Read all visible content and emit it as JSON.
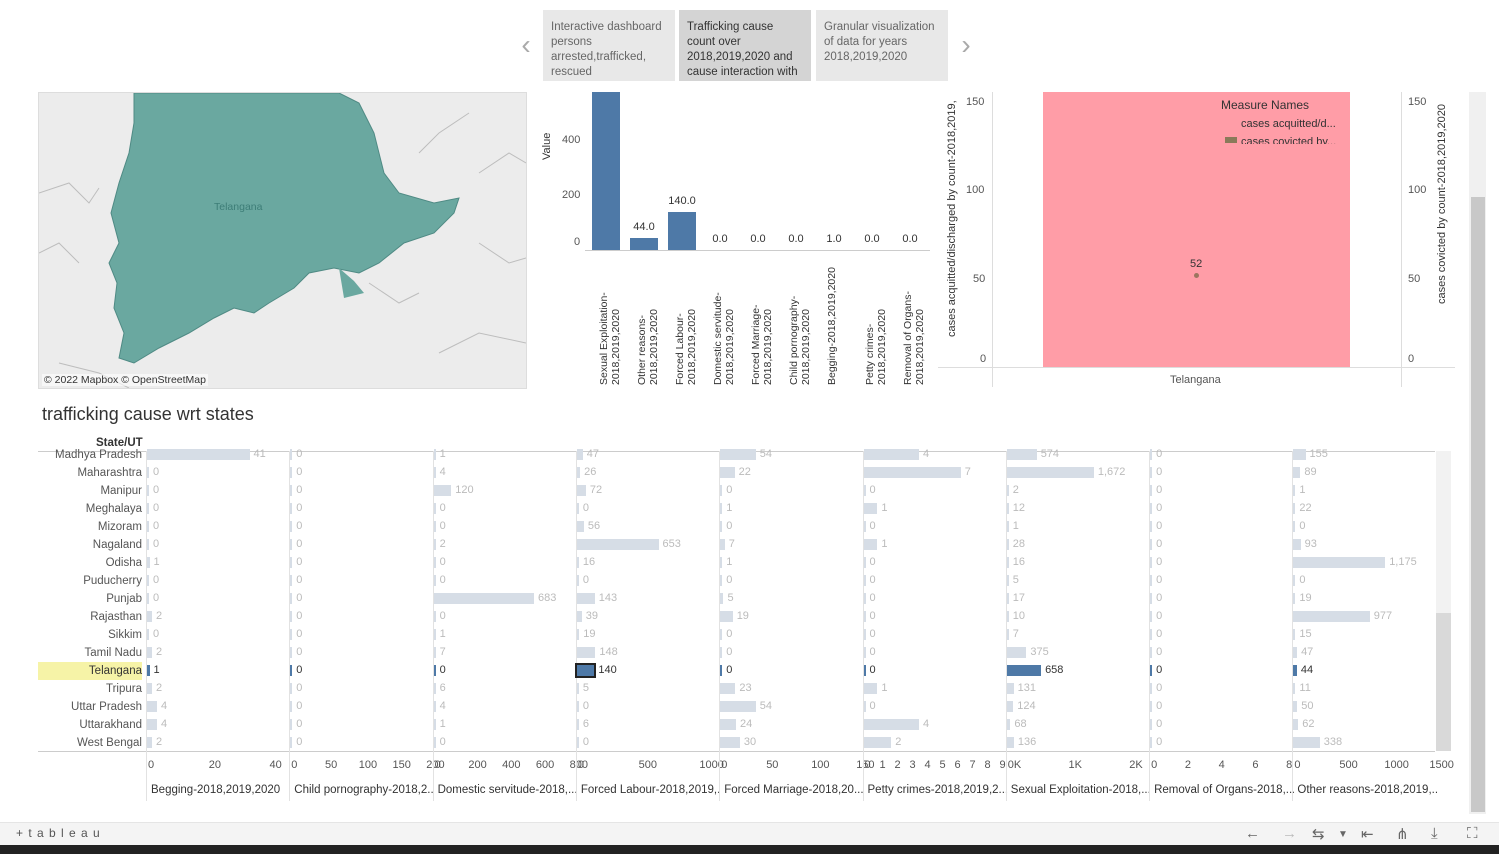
{
  "story": {
    "tabs": [
      {
        "label": "Interactive dashboard persons arrested,trafficked, rescued"
      },
      {
        "label": "Trafficking cause count over 2018,2019,2020 and cause interaction with"
      },
      {
        "label": "Granular visualization of data for years 2018,2019,2020"
      }
    ]
  },
  "map": {
    "region_label": "Telangana",
    "credit": "© 2022 Mapbox  © OpenStreetMap"
  },
  "cause_chart": {
    "ylabel": "Value",
    "yticks": [
      "400",
      "200",
      "0"
    ],
    "categories": [
      "Sexual Exploitation-2018,2019,2020",
      "Other reasons-2018,2019,2020",
      "Forced Labour-2018,2019,2020",
      "Domestic servitude-2018,2019,2020",
      "Forced Marriage-2018,2019,2020",
      "Child pornography-2018,2019,2020",
      "Begging-2018,2019,2020",
      "Petty crimes-2018,2019,2020",
      "Removal of Organs-2018,2019,2020"
    ],
    "value_labels": [
      "",
      "44.0",
      "140.0",
      "0.0",
      "0.0",
      "0.0",
      "1.0",
      "0.0",
      "0.0"
    ],
    "values": [
      658,
      44,
      140,
      0,
      0,
      0,
      1,
      0,
      0
    ]
  },
  "cases_chart": {
    "left_axis_label": "cases acquitted/discharged by count-2018,2019,",
    "right_axis_label": "cases covicted by count-2018,2019,2020",
    "left_ticks": [
      "150",
      "100",
      "50",
      "0"
    ],
    "right_ticks": [
      "150",
      "100",
      "50",
      "0"
    ],
    "x_label": "Telangana",
    "point_label": "52",
    "point_value": 52,
    "legend_title": "Measure Names",
    "legend_items": [
      "cases acquitted/d...",
      "cases covicted by..."
    ],
    "colors": {
      "band": "#ff9da7",
      "point": "#9c755f",
      "legend_swatch": "#8a7a5a"
    }
  },
  "table": {
    "title": "trafficking cause wrt states",
    "row_header": "State/UT",
    "selected_state": "Telangana",
    "states": [
      "Madhya Pradesh",
      "Maharashtra",
      "Manipur",
      "Meghalaya",
      "Mizoram",
      "Nagaland",
      "Odisha",
      "Puducherry",
      "Punjab",
      "Rajasthan",
      "Sikkim",
      "Tamil Nadu",
      "Telangana",
      "Tripura",
      "Uttar Pradesh",
      "Uttarakhand",
      "West Bengal"
    ],
    "columns": [
      {
        "header": "Begging-2018,2019,2020",
        "max": 50,
        "ticks": [
          "0",
          "20",
          "40"
        ],
        "values": [
          41,
          0,
          0,
          0,
          0,
          0,
          1,
          0,
          0,
          2,
          0,
          2,
          1,
          2,
          4,
          4,
          2
        ]
      },
      {
        "header": "Child pornography-2018,2...",
        "max": 200,
        "ticks": [
          "0",
          "50",
          "100",
          "150",
          "200"
        ],
        "values": [
          0,
          0,
          0,
          0,
          0,
          0,
          0,
          0,
          0,
          0,
          0,
          0,
          0,
          0,
          0,
          0,
          0
        ]
      },
      {
        "header": "Domestic servitude-2018,...",
        "max": 850,
        "ticks": [
          "0",
          "200",
          "400",
          "600",
          "800"
        ],
        "values": [
          1,
          4,
          120,
          0,
          0,
          2,
          0,
          0,
          683,
          0,
          1,
          7,
          0,
          6,
          4,
          1,
          0
        ]
      },
      {
        "header": "Forced Labour-2018,2019,...",
        "max": 1000,
        "ticks": [
          "0",
          "500",
          "1000"
        ],
        "values": [
          47,
          26,
          72,
          0,
          56,
          653,
          16,
          0,
          143,
          39,
          19,
          148,
          140,
          5,
          0,
          6,
          0
        ]
      },
      {
        "header": "Forced Marriage-2018,20...",
        "max": 190,
        "ticks": [
          "0",
          "50",
          "100",
          "150"
        ],
        "values": [
          54,
          22,
          0,
          1,
          0,
          7,
          1,
          0,
          5,
          19,
          0,
          0,
          0,
          23,
          54,
          24,
          30
        ]
      },
      {
        "header": "Petty crimes-2018,2019,2...",
        "max": 9,
        "ticks": [
          "0",
          "1",
          "2",
          "3",
          "4",
          "5",
          "6",
          "7",
          "8",
          "9"
        ],
        "values": [
          4,
          7,
          0,
          1,
          0,
          1,
          0,
          0,
          0,
          0,
          0,
          0,
          0,
          1,
          0,
          4,
          2
        ]
      },
      {
        "header": "Sexual Exploitation-2018,...",
        "max": 2400,
        "ticks": [
          "0K",
          "1K",
          "2K"
        ],
        "values": [
          574,
          1672,
          2,
          12,
          1,
          28,
          16,
          5,
          17,
          10,
          7,
          375,
          658,
          131,
          124,
          68,
          136
        ]
      },
      {
        "header": "Removal of Organs-2018,...",
        "max": 8,
        "ticks": [
          "0",
          "2",
          "4",
          "6",
          "8"
        ],
        "values": [
          0,
          0,
          0,
          0,
          0,
          0,
          0,
          0,
          0,
          0,
          0,
          0,
          0,
          0,
          0,
          0,
          0
        ]
      },
      {
        "header": "Other reasons-2018,2019,...",
        "max": 1600,
        "ticks": [
          "0",
          "500",
          "1000",
          "1500"
        ],
        "values": [
          155,
          89,
          1,
          22,
          0,
          93,
          1175,
          0,
          19,
          977,
          15,
          47,
          44,
          11,
          50,
          62,
          338
        ]
      }
    ],
    "value_labels": [
      [
        "41",
        "0",
        "0",
        "0",
        "0",
        "0",
        "1",
        "0",
        "0",
        "2",
        "0",
        "2",
        "1",
        "2",
        "4",
        "4",
        "2"
      ],
      [
        "0",
        "0",
        "0",
        "0",
        "0",
        "0",
        "0",
        "0",
        "0",
        "0",
        "0",
        "0",
        "0",
        "0",
        "0",
        "0",
        "0"
      ],
      [
        "1",
        "4",
        "120",
        "0",
        "0",
        "2",
        "0",
        "0",
        "683",
        "0",
        "1",
        "7",
        "0",
        "6",
        "4",
        "1",
        "0"
      ],
      [
        "47",
        "26",
        "72",
        "0",
        "56",
        "653",
        "16",
        "0",
        "143",
        "39",
        "19",
        "148",
        "140",
        "5",
        "0",
        "6",
        "0"
      ],
      [
        "54",
        "22",
        "0",
        "1",
        "0",
        "7",
        "1",
        "0",
        "5",
        "19",
        "0",
        "0",
        "0",
        "23",
        "54",
        "24",
        "30"
      ],
      [
        "4",
        "7",
        "0",
        "1",
        "0",
        "1",
        "0",
        "0",
        "0",
        "0",
        "0",
        "0",
        "0",
        "1",
        "0",
        "4",
        "2"
      ],
      [
        "574",
        "1,672",
        "2",
        "12",
        "1",
        "28",
        "16",
        "5",
        "17",
        "10",
        "7",
        "375",
        "658",
        "131",
        "124",
        "68",
        "136"
      ],
      [
        "0",
        "0",
        "0",
        "0",
        "0",
        "0",
        "0",
        "0",
        "0",
        "0",
        "0",
        "0",
        "0",
        "0",
        "0",
        "0",
        "0"
      ],
      [
        "155",
        "89",
        "1",
        "22",
        "0",
        "93",
        "1,175",
        "0",
        "19",
        "977",
        "15",
        "47",
        "44",
        "11",
        "50",
        "62",
        "338"
      ]
    ]
  },
  "footer": {
    "brand": "+ t a b l e a u"
  },
  "colors": {
    "bar_primary": "#4e79a7",
    "bar_faded": "#d6dde6",
    "map_fill": "#6aa8a0",
    "highlight": "#f6f3a7"
  }
}
